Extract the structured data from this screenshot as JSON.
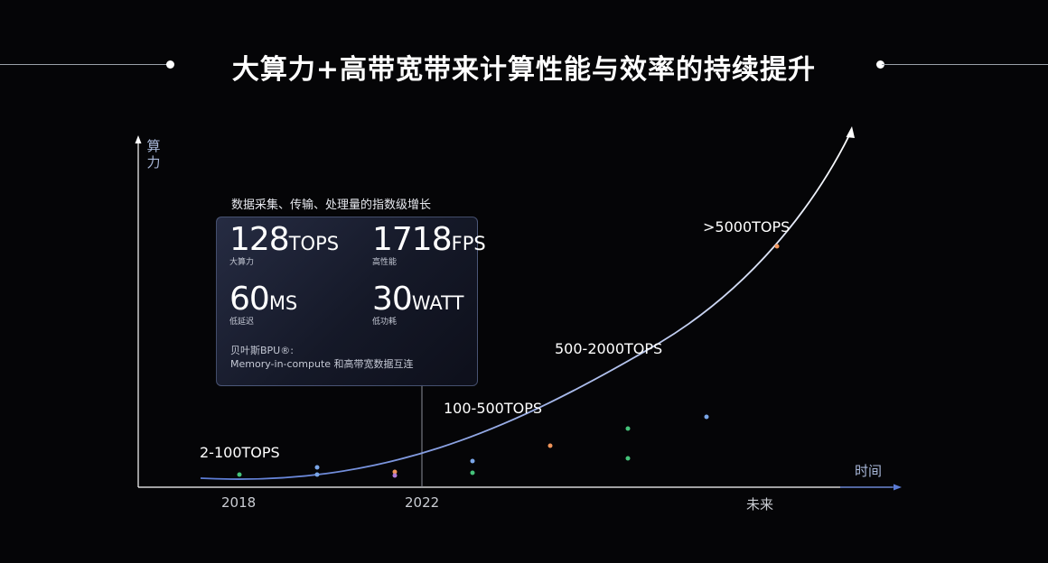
{
  "title": "大算力+高带宽带来计算性能与效率的持续提升",
  "chart_data": {
    "type": "line",
    "y_axis_label": "算力",
    "x_axis_label": "时间",
    "x_tick_labels": [
      "2018",
      "2022",
      "未来"
    ],
    "tiers": [
      "2-100TOPS",
      "100-500TOPS",
      "500-2000TOPS",
      ">5000TOPS"
    ],
    "grid": false,
    "series": [
      {
        "type": "exponential-curve",
        "color": "#ffffff",
        "arrow": true
      }
    ]
  },
  "panel": {
    "caption": "数据采集、传输、处理量的指数级增长",
    "metrics": [
      {
        "value": "128",
        "unit": "TOPS",
        "label": "大算力"
      },
      {
        "value": "1718",
        "unit": "FPS",
        "label": "高性能"
      },
      {
        "value": "60",
        "unit": "MS",
        "label": "低延迟"
      },
      {
        "value": "30",
        "unit": "WATT",
        "label": "低功耗"
      }
    ],
    "bpu_line1": "贝叶斯BPU®:",
    "bpu_line2": "Memory-in-compute 和高带宽数据互连"
  },
  "colors": {
    "background": "#050507",
    "axis": "#ffffff",
    "axis_arrow": "#5b7bd5",
    "curve": "#ffffff",
    "dot_green": "#45c37a",
    "dot_blue": "#7aa6e8",
    "dot_orange": "#f0955a",
    "dot_purple": "#b07ad8"
  }
}
